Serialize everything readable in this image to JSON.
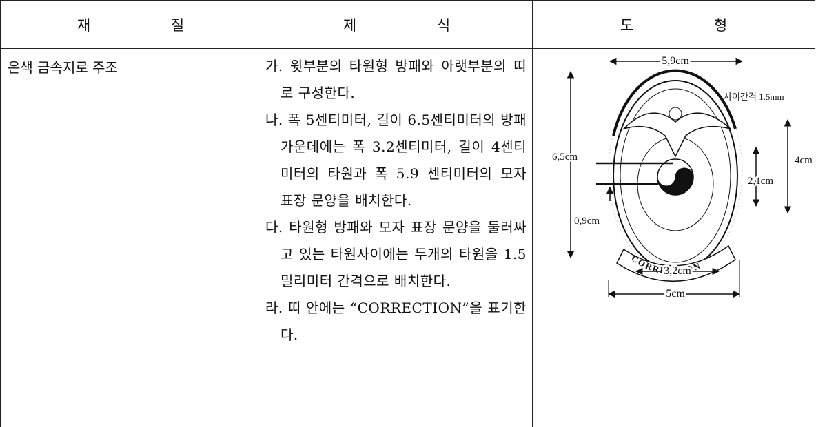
{
  "table": {
    "headers": [
      "재 질",
      "제 식",
      "도 형"
    ],
    "material": "은색 금속지로 주조",
    "items": [
      "가. 윗부분의 타원형 방패와 아랫부분의 띠로 구성한다.",
      "나. 폭 5센티미터, 길이 6.5센티미터의 방패 가운데에는 폭 3.2센티미터, 길이 4센티미터의 타원과 폭 5.9 센티미터의 모자 표장 문양을 배치한다.",
      "다. 타원형 방패와 모자 표장 문양을 둘러싸고 있는 타원사이에는 두개의 타원을 1.5 밀리미터 간격으로 배치한다.",
      "라. 띠 안에는 “CORRECTION”을 표기한다."
    ],
    "figure": {
      "top_width": "5,9cm",
      "gap": "사이간격 1.5mm",
      "height": "6,5cm",
      "inner_height": "4cm",
      "center_height": "2,1cm",
      "offset": "0,9cm",
      "band_text": "CORRECTION",
      "inner_width": "3,2cm",
      "width": "5cm"
    }
  }
}
